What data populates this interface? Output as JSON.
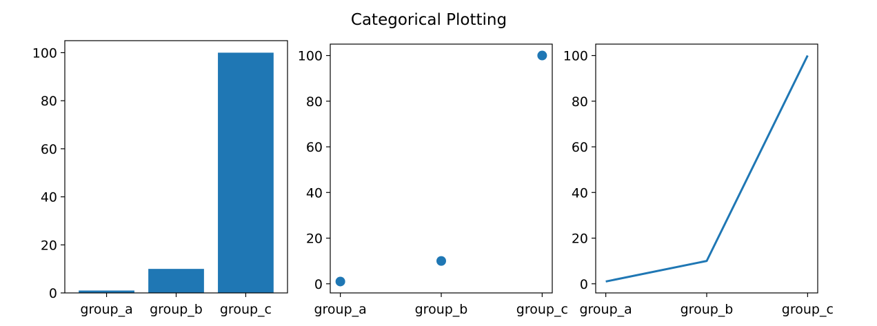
{
  "figure": {
    "title": "Categorical Plotting"
  },
  "chart_data": [
    {
      "type": "bar",
      "categories": [
        "group_a",
        "group_b",
        "group_c"
      ],
      "values": [
        1,
        10,
        100
      ],
      "ylim": [
        0,
        105
      ],
      "yticks": [
        0,
        20,
        40,
        60,
        80,
        100
      ],
      "color": "#1f77b4",
      "grid": false
    },
    {
      "type": "scatter",
      "categories": [
        "group_a",
        "group_b",
        "group_c"
      ],
      "values": [
        1,
        10,
        100
      ],
      "ylim": [
        -4,
        105
      ],
      "yticks": [
        0,
        20,
        40,
        60,
        80,
        100
      ],
      "color": "#1f77b4",
      "grid": false
    },
    {
      "type": "line",
      "categories": [
        "group_a",
        "group_b",
        "group_c"
      ],
      "values": [
        1,
        10,
        100
      ],
      "ylim": [
        -4,
        105
      ],
      "yticks": [
        0,
        20,
        40,
        60,
        80,
        100
      ],
      "color": "#1f77b4",
      "grid": false
    }
  ]
}
